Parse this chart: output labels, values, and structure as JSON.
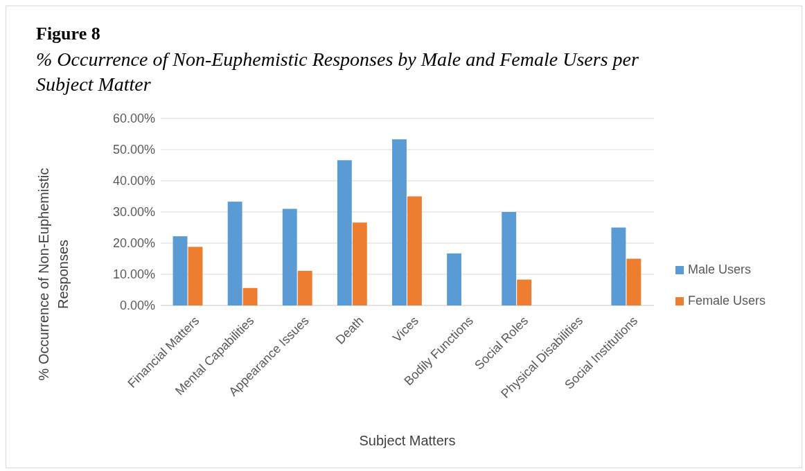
{
  "chart_data": {
    "type": "bar",
    "title": "Figure 8",
    "subtitle": "% Occurrence of Non-Euphemistic Responses by Male and Female Users per Subject Matter",
    "xlabel": "Subject Matters",
    "ylabel": "% Occurrence of Non-Euphemistic Responses",
    "categories": [
      "Financial Matters",
      "Mental Capabilities",
      "Appearance Issues",
      "Death",
      "Vices",
      "Bodily Functions",
      "Social Roles",
      "Physical Disabilities",
      "Social Institutions"
    ],
    "series": [
      {
        "name": "Male Users",
        "color": "#5b9bd5",
        "values": [
          22.2,
          33.3,
          31,
          46.6,
          53.3,
          16.7,
          30,
          0,
          25
        ]
      },
      {
        "name": "Female Users",
        "color": "#ed7d31",
        "values": [
          18.8,
          5.6,
          11.1,
          26.6,
          35,
          0,
          8.3,
          0,
          15
        ]
      }
    ],
    "ylim": [
      0,
      60
    ],
    "yticks": [
      {
        "value": 0,
        "label": "0.00%"
      },
      {
        "value": 10,
        "label": "10.00%"
      },
      {
        "value": 20,
        "label": "20.00%"
      },
      {
        "value": 30,
        "label": "30.00%"
      },
      {
        "value": 40,
        "label": "40.00%"
      },
      {
        "value": 50,
        "label": "50.00%"
      },
      {
        "value": 60,
        "label": "60.00%"
      }
    ],
    "grid": "y",
    "legend": "right"
  }
}
